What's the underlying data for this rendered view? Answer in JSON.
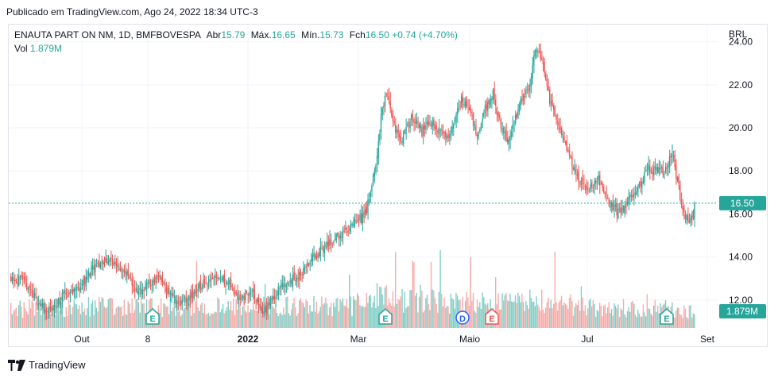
{
  "published": "Publicado em TradingView.com, Ago 24, 2022 18:34 UTC-3",
  "legend": {
    "symbol": "ENAUTA PART ON NM, 1D, BMFBOVESPA",
    "open_label": "Abr",
    "open_value": "15.79",
    "high_label": "Máx.",
    "high_value": "16.65",
    "low_label": "Mín.",
    "low_value": "15.73",
    "close_label": "Fch",
    "close_value": "16.50",
    "change": "+0.74 (+4.70%)",
    "vol_label": "Vol",
    "vol_value": "1.879M"
  },
  "currency": "BRL",
  "footer": {
    "brand": "TradingView"
  },
  "colors": {
    "up": "#26a69a",
    "down": "#ef5350",
    "volume_up": "#7fcdc4",
    "volume_down": "#f7a9a7",
    "price_line": "#26a69a"
  },
  "chart_data": {
    "type": "candlestick",
    "y_range": [
      10.7,
      24.8
    ],
    "y_ticks": [
      "12.00",
      "14.00",
      "16.00",
      "18.00",
      "20.00",
      "22.00",
      "24.00"
    ],
    "x_ticks": [
      "Out",
      "8",
      "2022",
      "Mar",
      "Maio",
      "Jul",
      "Set"
    ],
    "last_price_label": "16.50",
    "last_volume_label": "1.879M",
    "events": [
      {
        "type": "earnings",
        "label": "E",
        "x": "8"
      },
      {
        "type": "earnings",
        "label": "E",
        "x": "Mar"
      },
      {
        "type": "dividend",
        "label": "D",
        "x": "Mai"
      },
      {
        "type": "earnings",
        "label": "E",
        "x": "Mai"
      },
      {
        "type": "earnings",
        "label": "E",
        "x": "Ago"
      }
    ],
    "close_path": [
      [
        0,
        13.1
      ],
      [
        12,
        12.7
      ],
      [
        22,
        11.8
      ],
      [
        30,
        11.4
      ],
      [
        40,
        12.2
      ],
      [
        52,
        12.6
      ],
      [
        62,
        13.4
      ],
      [
        72,
        13.9
      ],
      [
        82,
        13.6
      ],
      [
        90,
        13.0
      ],
      [
        96,
        12.3
      ],
      [
        104,
        12.7
      ],
      [
        112,
        13.1
      ],
      [
        120,
        12.4
      ],
      [
        128,
        11.8
      ],
      [
        136,
        12.1
      ],
      [
        146,
        12.8
      ],
      [
        156,
        13.2
      ],
      [
        166,
        12.7
      ],
      [
        174,
        12.1
      ],
      [
        182,
        12.4
      ],
      [
        192,
        11.4
      ],
      [
        200,
        12.2
      ],
      [
        208,
        12.8
      ],
      [
        218,
        13.1
      ],
      [
        230,
        14.0
      ],
      [
        240,
        14.6
      ],
      [
        250,
        15.0
      ],
      [
        258,
        15.4
      ],
      [
        266,
        15.8
      ],
      [
        270,
        16.2
      ],
      [
        274,
        17.2
      ],
      [
        278,
        18.8
      ],
      [
        282,
        21.0
      ],
      [
        286,
        21.6
      ],
      [
        290,
        20.2
      ],
      [
        296,
        19.4
      ],
      [
        304,
        20.6
      ],
      [
        312,
        19.8
      ],
      [
        320,
        20.3
      ],
      [
        330,
        19.6
      ],
      [
        336,
        20.0
      ],
      [
        342,
        21.4
      ],
      [
        348,
        20.9
      ],
      [
        354,
        19.7
      ],
      [
        360,
        20.9
      ],
      [
        366,
        21.6
      ],
      [
        372,
        20.0
      ],
      [
        378,
        19.4
      ],
      [
        386,
        21.0
      ],
      [
        394,
        22.0
      ],
      [
        398,
        23.8
      ],
      [
        404,
        23.0
      ],
      [
        410,
        21.0
      ],
      [
        416,
        20.2
      ],
      [
        424,
        18.6
      ],
      [
        430,
        17.7
      ],
      [
        438,
        17.2
      ],
      [
        446,
        17.6
      ],
      [
        454,
        16.6
      ],
      [
        462,
        16.0
      ],
      [
        470,
        16.7
      ],
      [
        478,
        17.4
      ],
      [
        484,
        18.1
      ],
      [
        490,
        18.0
      ],
      [
        496,
        18.0
      ],
      [
        502,
        18.9
      ],
      [
        506,
        17.5
      ],
      [
        510,
        16.2
      ],
      [
        514,
        15.6
      ],
      [
        517,
        15.79
      ],
      [
        519,
        16.5
      ]
    ],
    "volume_path": [
      [
        0,
        0.35
      ],
      [
        60,
        0.4
      ],
      [
        120,
        0.38
      ],
      [
        200,
        0.4
      ],
      [
        260,
        0.42
      ],
      [
        276,
        0.6
      ],
      [
        300,
        0.52
      ],
      [
        360,
        0.45
      ],
      [
        400,
        0.5
      ],
      [
        450,
        0.35
      ],
      [
        500,
        0.36
      ],
      [
        519,
        0.3
      ]
    ]
  }
}
